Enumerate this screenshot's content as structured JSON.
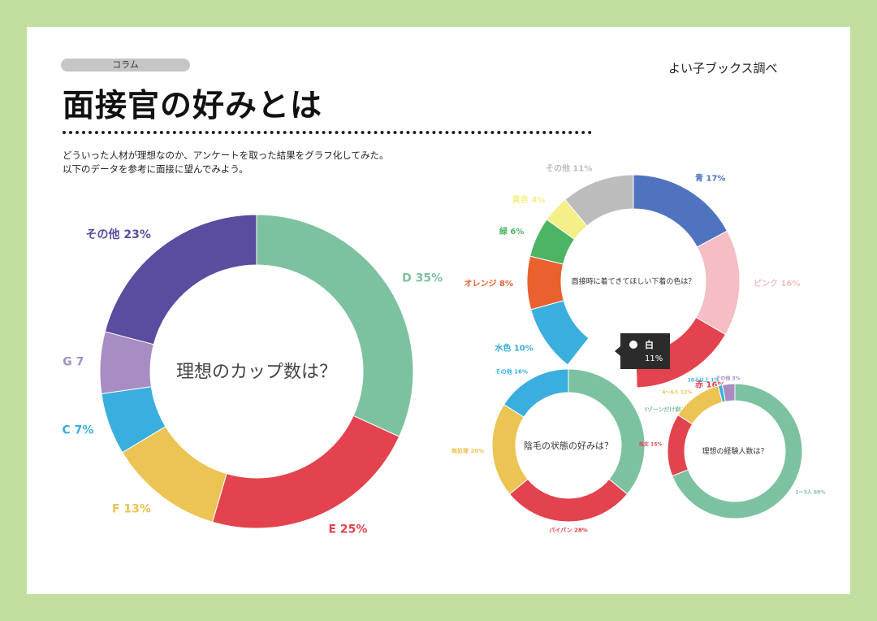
{
  "header": {
    "tag": "コラム",
    "source": "よい子ブックス調べ",
    "title": "面接官の好みとは",
    "desc_line1": "どういった人材が理想なのか、アンケートを取った結果をグラフ化してみた。",
    "desc_line2": "以下のデータを参考に面接に望んでみよう。"
  },
  "tooltip": {
    "label": "白",
    "value": "11%"
  },
  "chart_data": [
    {
      "type": "pie",
      "title": "理想のカップ数は？",
      "slices": [
        {
          "label": "D",
          "value": 35,
          "text": "D 35%",
          "color": "#7dc2a0"
        },
        {
          "label": "E",
          "value": 25,
          "text": "E 25%",
          "color": "#e3434f"
        },
        {
          "label": "F",
          "value": 13,
          "text": "F 13%",
          "color": "#ecc453"
        },
        {
          "label": "C",
          "value": 7,
          "text": "C 7%",
          "color": "#3aaede"
        },
        {
          "label": "G",
          "value": 7,
          "text": "G 7",
          "color": "#a78dc3"
        },
        {
          "label": "その他",
          "value": 23,
          "text": "その他 23%",
          "color": "#5a4c9e"
        }
      ]
    },
    {
      "type": "pie",
      "title": "面接時に着てきてほしい下着の色は？",
      "slices": [
        {
          "label": "青",
          "value": 17,
          "text": "青 17%",
          "color": "#4f73be"
        },
        {
          "label": "ピンク",
          "value": 16,
          "text": "ピンク 16%",
          "color": "#f5bdc4"
        },
        {
          "label": "赤",
          "value": 16,
          "text": "赤 16%",
          "color": "#e2434f"
        },
        {
          "label": "白",
          "value": 11,
          "text": "",
          "color": "#ffffff"
        },
        {
          "label": "水色",
          "value": 10,
          "text": "水色 10%",
          "color": "#3aaede"
        },
        {
          "label": "オレンジ",
          "value": 8,
          "text": "オレンジ 8%",
          "color": "#e8612f"
        },
        {
          "label": "緑",
          "value": 6,
          "text": "緑 6%",
          "color": "#4cb563"
        },
        {
          "label": "黄色",
          "value": 4,
          "text": "黄色 4%",
          "color": "#f4ef86"
        },
        {
          "label": "その他",
          "value": 11,
          "text": "その他 11%",
          "color": "#bdbcbc"
        }
      ]
    },
    {
      "type": "pie",
      "title": "陰毛の状態の好みは？",
      "slices": [
        {
          "label": "Iゾーンだけ剃る",
          "value": 36,
          "text": "Iゾーンだけ剃る 36%",
          "color": "#7dc2a0"
        },
        {
          "label": "パイパン",
          "value": 28,
          "text": "パイパン 28%",
          "color": "#e2434f"
        },
        {
          "label": "無処理",
          "value": 20,
          "text": "無処理 20%",
          "color": "#ecc453"
        },
        {
          "label": "その他",
          "value": 16,
          "text": "その他 16%",
          "color": "#3aaede"
        }
      ]
    },
    {
      "type": "pie",
      "title": "理想の経験人数は？",
      "slices": [
        {
          "label": "1〜3人",
          "value": 69,
          "text": "1〜3人 69%",
          "color": "#7dc2a0"
        },
        {
          "label": "処女",
          "value": 15,
          "text": "処女 15%",
          "color": "#e2434f"
        },
        {
          "label": "4〜6人",
          "value": 12,
          "text": "4〜6人 12%",
          "color": "#ecc453"
        },
        {
          "label": "10人以上",
          "value": 1,
          "text": "10人以上 1%",
          "color": "#3aaede"
        },
        {
          "label": "その他",
          "value": 3,
          "text": "その他 3%",
          "color": "#a78dc3"
        }
      ]
    }
  ]
}
